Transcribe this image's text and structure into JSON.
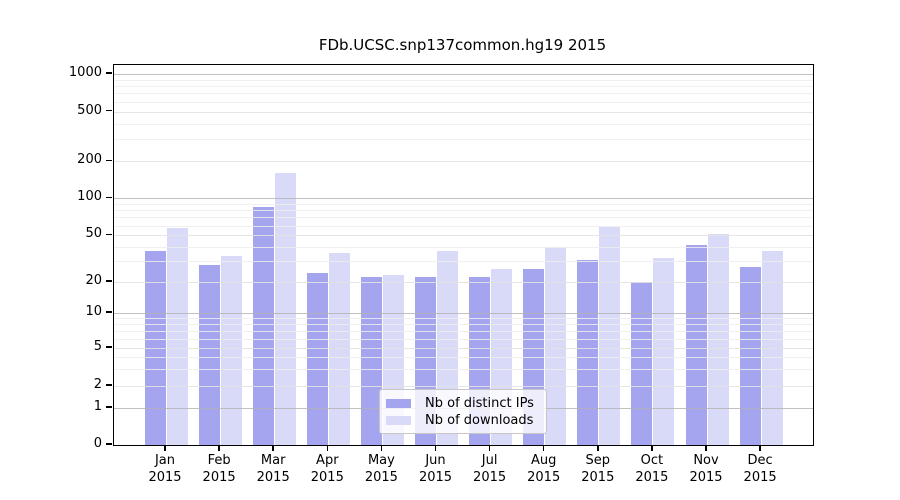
{
  "chart_data": {
    "type": "bar",
    "title": "FDb.UCSC.snp137common.hg19 2015",
    "categories": [
      "Jan",
      "Feb",
      "Mar",
      "Apr",
      "May",
      "Jun",
      "Jul",
      "Aug",
      "Sep",
      "Oct",
      "Nov",
      "Dec"
    ],
    "category_year": "2015",
    "series": [
      {
        "name": "Nb of distinct IPs",
        "color": "#a5a5ef",
        "values": [
          37,
          28,
          85,
          24,
          22,
          22,
          22,
          26,
          31,
          20,
          41,
          27
        ]
      },
      {
        "name": "Nb of downloads",
        "color": "#d9d9f8",
        "values": [
          57,
          33,
          160,
          35,
          23,
          37,
          26,
          40,
          58,
          32,
          51,
          37
        ]
      }
    ],
    "xlabel": "",
    "ylabel": "",
    "yscale": "symlog",
    "yticks": [
      0,
      1,
      2,
      5,
      10,
      20,
      50,
      100,
      200,
      500,
      1000
    ],
    "ylim": [
      0,
      1400
    ],
    "grid": true,
    "legend_position": "lower-center",
    "gridline_major_color": "#b2b2b2",
    "gridline_sub_color": "#e2e2e2",
    "gridline_minor_color": "#ededed"
  }
}
